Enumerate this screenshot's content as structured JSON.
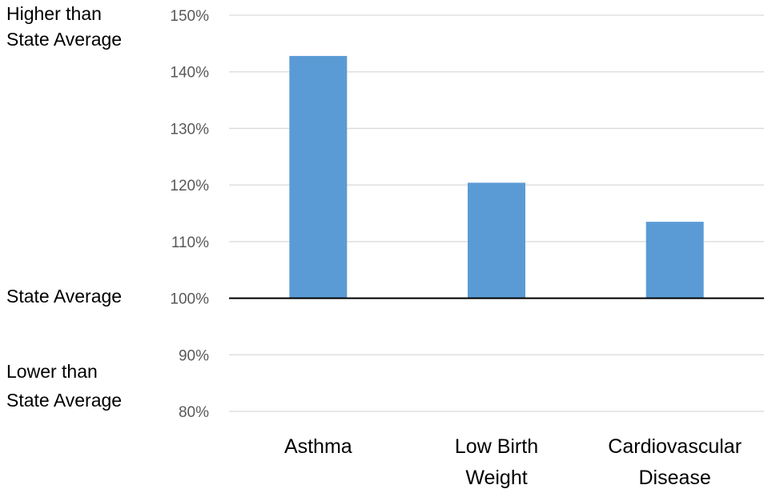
{
  "chart_data": {
    "type": "bar",
    "categories": [
      [
        "Asthma"
      ],
      [
        "Low Birth",
        "Weight"
      ],
      [
        "Cardiovascular",
        "Disease"
      ]
    ],
    "values": [
      142.8,
      120.4,
      113.5
    ],
    "unit": "%",
    "ylim": [
      80,
      150
    ],
    "yticks": [
      80,
      90,
      100,
      110,
      120,
      130,
      140,
      150
    ],
    "yticklabels": [
      "80%",
      "90%",
      "100%",
      "110%",
      "120%",
      "130%",
      "140%",
      "150%"
    ],
    "baseline": 100,
    "grid": true,
    "bar_color": "#5b9bd5",
    "grid_color": "#d9d9d9",
    "baseline_color": "#000000",
    "side_labels": {
      "higher": [
        "Higher than",
        "State Average"
      ],
      "state_average": "State Average",
      "lower": [
        "Lower than",
        "State Average"
      ]
    }
  }
}
